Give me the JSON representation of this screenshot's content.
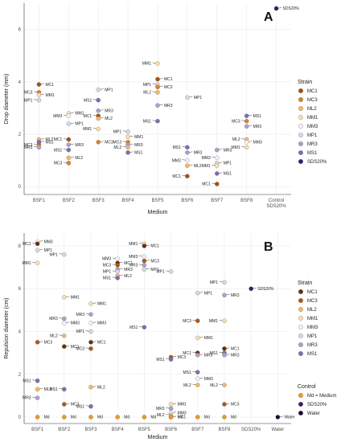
{
  "colors": {
    "MC1": "#a84f10",
    "MC3": "#d9822b",
    "ML2": "#f3b86a",
    "MM1": "#f9ddb0",
    "MM3": "#f3f0f0",
    "MP1": "#d8d6e8",
    "MR3": "#a9a2cc",
    "MS1": "#7c6fb0",
    "SDS20%": "#3b1a6b",
    "Md": "#e89a2c",
    "Water": "#1e0838",
    "MC1_B": "#6b2e0a",
    "MC3_B": "#b0571a"
  },
  "chart_data": [
    {
      "type": "scatter",
      "panel": "A",
      "xlabel": "Medium",
      "ylabel": "Drop diameter (mm)",
      "categories": [
        "BSF1",
        "BSF2",
        "BSF3",
        "BSF4",
        "BSF5",
        "BSF6",
        "BSF7",
        "BSF8",
        "Control\nSDS20%"
      ],
      "ylim": [
        -0.3,
        7.0
      ],
      "yticks": [
        0,
        2,
        4,
        6
      ],
      "grid": true,
      "legend": {
        "title": "Strain",
        "position": "right",
        "items": [
          "MC1",
          "MC3",
          "ML2",
          "MM1",
          "MM3",
          "MP1",
          "MR3",
          "MS1",
          "SDS20%"
        ]
      },
      "points": [
        {
          "x": 0,
          "y": 3.9,
          "s": "MC1"
        },
        {
          "x": 0,
          "y": 3.6,
          "s": "MC3"
        },
        {
          "x": 0,
          "y": 3.5,
          "s": "MM1"
        },
        {
          "x": 0,
          "y": 3.3,
          "s": "MP1"
        },
        {
          "x": 0,
          "y": 1.8,
          "s": "ML2"
        },
        {
          "x": 0,
          "y": 1.6,
          "s": "MC3"
        },
        {
          "x": 0,
          "y": 1.7,
          "s": "MS1"
        },
        {
          "x": 0,
          "y": 1.5,
          "s": "MR3"
        },
        {
          "x": 1,
          "y": 2.8,
          "s": "MM1"
        },
        {
          "x": 1,
          "y": 2.7,
          "s": "MM3"
        },
        {
          "x": 1,
          "y": 2.4,
          "s": "MP1"
        },
        {
          "x": 1,
          "y": 1.8,
          "s": "MC1"
        },
        {
          "x": 1,
          "y": 1.6,
          "s": "MR3"
        },
        {
          "x": 1,
          "y": 1.4,
          "s": "MS1"
        },
        {
          "x": 1,
          "y": 1.1,
          "s": "ML2"
        },
        {
          "x": 1,
          "y": 0.9,
          "s": "MC3"
        },
        {
          "x": 2,
          "y": 3.7,
          "s": "MP1"
        },
        {
          "x": 2,
          "y": 3.3,
          "s": "MS1"
        },
        {
          "x": 2,
          "y": 2.9,
          "s": "MR3"
        },
        {
          "x": 2,
          "y": 2.7,
          "s": "MC1"
        },
        {
          "x": 2,
          "y": 2.6,
          "s": "ML2"
        },
        {
          "x": 2,
          "y": 2.2,
          "s": "MM1"
        },
        {
          "x": 2,
          "y": 1.7,
          "s": "MC3"
        },
        {
          "x": 3,
          "y": 2.1,
          "s": "MP1"
        },
        {
          "x": 3,
          "y": 1.9,
          "s": "MM1"
        },
        {
          "x": 3,
          "y": 1.7,
          "s": "MC3"
        },
        {
          "x": 3,
          "y": 1.6,
          "s": "MR3"
        },
        {
          "x": 3,
          "y": 1.5,
          "s": "ML2"
        },
        {
          "x": 3,
          "y": 1.3,
          "s": "MS1"
        },
        {
          "x": 4,
          "y": 4.7,
          "s": "MM1"
        },
        {
          "x": 4,
          "y": 4.1,
          "s": "MC1"
        },
        {
          "x": 4,
          "y": 3.9,
          "s": "MP1"
        },
        {
          "x": 4,
          "y": 3.8,
          "s": "MC3"
        },
        {
          "x": 4,
          "y": 3.6,
          "s": "ML2"
        },
        {
          "x": 4,
          "y": 3.1,
          "s": "MR3"
        },
        {
          "x": 4,
          "y": 2.5,
          "s": "MS1"
        },
        {
          "x": 5,
          "y": 3.4,
          "s": "MP1"
        },
        {
          "x": 5,
          "y": 1.5,
          "s": "MS1"
        },
        {
          "x": 5,
          "y": 1.3,
          "s": "MR3"
        },
        {
          "x": 5,
          "y": 1.0,
          "s": "MM3"
        },
        {
          "x": 5,
          "y": 0.8,
          "s": "ML2"
        },
        {
          "x": 5,
          "y": 0.4,
          "s": "MC1"
        },
        {
          "x": 6,
          "y": 1.4,
          "s": "MR3"
        },
        {
          "x": 6,
          "y": 1.1,
          "s": "MM3"
        },
        {
          "x": 6,
          "y": 0.9,
          "s": "MP1"
        },
        {
          "x": 6,
          "y": 0.8,
          "s": "MM1"
        },
        {
          "x": 6,
          "y": 0.5,
          "s": "MS1"
        },
        {
          "x": 6,
          "y": 0.1,
          "s": "MC1"
        },
        {
          "x": 7,
          "y": 2.7,
          "s": "MS1"
        },
        {
          "x": 7,
          "y": 2.5,
          "s": "MC3"
        },
        {
          "x": 7,
          "y": 2.3,
          "s": "MR3"
        },
        {
          "x": 7,
          "y": 1.8,
          "s": "ML2"
        },
        {
          "x": 7,
          "y": 1.7,
          "s": "MM3"
        },
        {
          "x": 7,
          "y": 1.5,
          "s": "MM1"
        },
        {
          "x": 8,
          "y": 6.8,
          "s": "SDS20%"
        }
      ]
    },
    {
      "type": "scatter",
      "panel": "B",
      "xlabel": "Medium",
      "ylabel": "Repulsion diameter (cm)",
      "categories": [
        "BSF1",
        "BSF2",
        "BSF3",
        "BSF4",
        "BSF5",
        "BSF6",
        "BSF7",
        "BSF8",
        "SDS20%",
        "Water"
      ],
      "ylim": [
        -0.3,
        8.6
      ],
      "yticks": [
        0,
        2,
        4,
        6,
        8
      ],
      "grid": true,
      "legend": [
        {
          "title": "Strain",
          "position": "right",
          "items": [
            "MC1",
            "MC3",
            "ML2",
            "MM1",
            "MM3",
            "MP1",
            "MR3",
            "MS1"
          ]
        },
        {
          "title": "Control",
          "position": "right",
          "items": [
            "Md  = Medium",
            "SDS20%",
            "Water"
          ]
        }
      ],
      "points": [
        {
          "x": 0,
          "y": 8.2,
          "s": "MM3"
        },
        {
          "x": 0,
          "y": 8.1,
          "s": "MC1"
        },
        {
          "x": 0,
          "y": 7.8,
          "s": "MP1"
        },
        {
          "x": 0,
          "y": 7.2,
          "s": "MM1"
        },
        {
          "x": 0,
          "y": 3.5,
          "s": "MC3"
        },
        {
          "x": 0,
          "y": 1.7,
          "s": "MS1"
        },
        {
          "x": 0,
          "y": 1.3,
          "s": "ML2"
        },
        {
          "x": 0,
          "y": 0.9,
          "s": "MR3"
        },
        {
          "x": 0,
          "y": 0,
          "s": "Md"
        },
        {
          "x": 1,
          "y": 7.6,
          "s": "MP1"
        },
        {
          "x": 1,
          "y": 5.6,
          "s": "MM1"
        },
        {
          "x": 1,
          "y": 4.6,
          "s": "MR3"
        },
        {
          "x": 1,
          "y": 4.4,
          "s": "MM3"
        },
        {
          "x": 1,
          "y": 3.8,
          "s": "ML2"
        },
        {
          "x": 1,
          "y": 3.3,
          "s": "MC1"
        },
        {
          "x": 1,
          "y": 1.3,
          "s": "MS1"
        },
        {
          "x": 1,
          "y": 0.6,
          "s": "MC3"
        },
        {
          "x": 1,
          "y": 0,
          "s": "Md"
        },
        {
          "x": 2,
          "y": 5.3,
          "s": "MM1"
        },
        {
          "x": 2,
          "y": 4.8,
          "s": "MR3"
        },
        {
          "x": 2,
          "y": 4.4,
          "s": "MM3"
        },
        {
          "x": 2,
          "y": 4.0,
          "s": "MP1"
        },
        {
          "x": 2,
          "y": 3.5,
          "s": "MC1"
        },
        {
          "x": 2,
          "y": 3.2,
          "s": "MC3"
        },
        {
          "x": 2,
          "y": 1.4,
          "s": "ML2"
        },
        {
          "x": 2,
          "y": 0.5,
          "s": "MS1"
        },
        {
          "x": 2,
          "y": 0,
          "s": "Md"
        },
        {
          "x": 3,
          "y": 7.4,
          "s": "MM3"
        },
        {
          "x": 3,
          "y": 7.2,
          "s": "MC1"
        },
        {
          "x": 3,
          "y": 7.1,
          "s": "MC3"
        },
        {
          "x": 3,
          "y": 6.9,
          "s": "MR3"
        },
        {
          "x": 3,
          "y": 6.8,
          "s": "MP1"
        },
        {
          "x": 3,
          "y": 6.6,
          "s": "ML2"
        },
        {
          "x": 3,
          "y": 6.5,
          "s": "MS1"
        },
        {
          "x": 3,
          "y": 0,
          "s": "Md"
        },
        {
          "x": 4,
          "y": 8.1,
          "s": "MM1"
        },
        {
          "x": 4,
          "y": 8.0,
          "s": "MC1"
        },
        {
          "x": 4,
          "y": 7.5,
          "s": "MM3"
        },
        {
          "x": 4,
          "y": 7.3,
          "s": "MC3"
        },
        {
          "x": 4,
          "y": 7.1,
          "s": "MR3"
        },
        {
          "x": 4,
          "y": 6.9,
          "s": "MP1"
        },
        {
          "x": 4,
          "y": 4.2,
          "s": "MS1"
        },
        {
          "x": 4,
          "y": 0,
          "s": "Md"
        },
        {
          "x": 5,
          "y": 6.8,
          "s": "MP1"
        },
        {
          "x": 5,
          "y": 2.8,
          "s": "MC3"
        },
        {
          "x": 5,
          "y": 2.7,
          "s": "MS1"
        },
        {
          "x": 5,
          "y": 0.6,
          "s": "MM1"
        },
        {
          "x": 5,
          "y": 0.4,
          "s": "MR3"
        },
        {
          "x": 5,
          "y": 0.2,
          "s": "MM3"
        },
        {
          "x": 5,
          "y": 0.1,
          "s": "ML2"
        },
        {
          "x": 5,
          "y": 0.0,
          "s": "MC1"
        },
        {
          "x": 5,
          "y": 0,
          "s": "Md"
        },
        {
          "x": 6,
          "y": 5.8,
          "s": "MP1"
        },
        {
          "x": 6,
          "y": 4.5,
          "s": "MC3"
        },
        {
          "x": 6,
          "y": 3.7,
          "s": "MM1"
        },
        {
          "x": 6,
          "y": 3.0,
          "s": "MC1"
        },
        {
          "x": 6,
          "y": 2.9,
          "s": "MR3"
        },
        {
          "x": 6,
          "y": 2.1,
          "s": "MS1"
        },
        {
          "x": 6,
          "y": 1.8,
          "s": "MM3"
        },
        {
          "x": 6,
          "y": 1.5,
          "s": "ML2"
        },
        {
          "x": 6,
          "y": 0,
          "s": "Md"
        },
        {
          "x": 7,
          "y": 6.3,
          "s": "MP1"
        },
        {
          "x": 7,
          "y": 5.7,
          "s": "MR3"
        },
        {
          "x": 7,
          "y": 4.5,
          "s": "MM1"
        },
        {
          "x": 7,
          "y": 3.2,
          "s": "MC1"
        },
        {
          "x": 7,
          "y": 3.0,
          "s": "MS1"
        },
        {
          "x": 7,
          "y": 2.9,
          "s": "MR3"
        },
        {
          "x": 7,
          "y": 1.5,
          "s": "ML2"
        },
        {
          "x": 7,
          "y": 0.6,
          "s": "MC3"
        },
        {
          "x": 7,
          "y": 0,
          "s": "Md"
        },
        {
          "x": 8,
          "y": 6.0,
          "s": "SDS20%"
        },
        {
          "x": 9,
          "y": 0.0,
          "s": "Water"
        }
      ]
    }
  ],
  "panels": {
    "A": {
      "letter": "A",
      "xlabel": "Medium",
      "ylabel": "Drop diameter (mm)",
      "legend_title": "Strain"
    },
    "B": {
      "letter": "B",
      "xlabel": "Medium",
      "ylabel": "Repulsion diameter (cm)",
      "legend_title": "Strain",
      "legend2_title": "Control"
    }
  }
}
